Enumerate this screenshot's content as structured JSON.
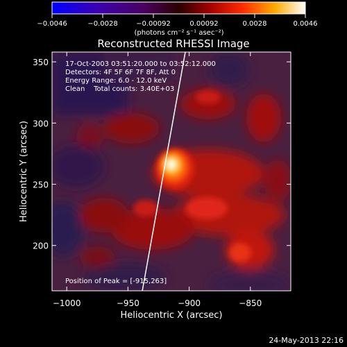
{
  "colorbar": {
    "ticks": [
      "-0.0046",
      "-0.0028",
      "-0.00092",
      "0.00092",
      "0.0028",
      "0.0046"
    ],
    "units": "(photons cm⁻² s⁻¹ asec⁻²)"
  },
  "chart_data": {
    "type": "heatmap",
    "title": "Reconstructed RHESSI Image",
    "xlabel": "Heliocentric X (arcsec)",
    "ylabel": "Heliocentric Y (arcsec)",
    "xlim": [
      -1012,
      -817
    ],
    "ylim": [
      163,
      358
    ],
    "x_ticks": [
      -1000,
      -950,
      -900,
      -850
    ],
    "y_ticks": [
      200,
      250,
      300,
      350
    ],
    "color_range": [
      -0.0046,
      0.0046
    ],
    "annotations": [
      "17-Oct-2003 03:51:20.000 to 03:52:12.000",
      "Detectors: 4F 5F 6F 7F 8F, Att 0",
      "Energy Range: 6.0 - 12.0 keV",
      "Clean    Total counts: 3.40E+03"
    ],
    "peak_label": "Position of Peak = [-915,263]",
    "peak": {
      "x": -915,
      "y": 263
    }
  },
  "footer_timestamp": "24-May-2013 22:16"
}
